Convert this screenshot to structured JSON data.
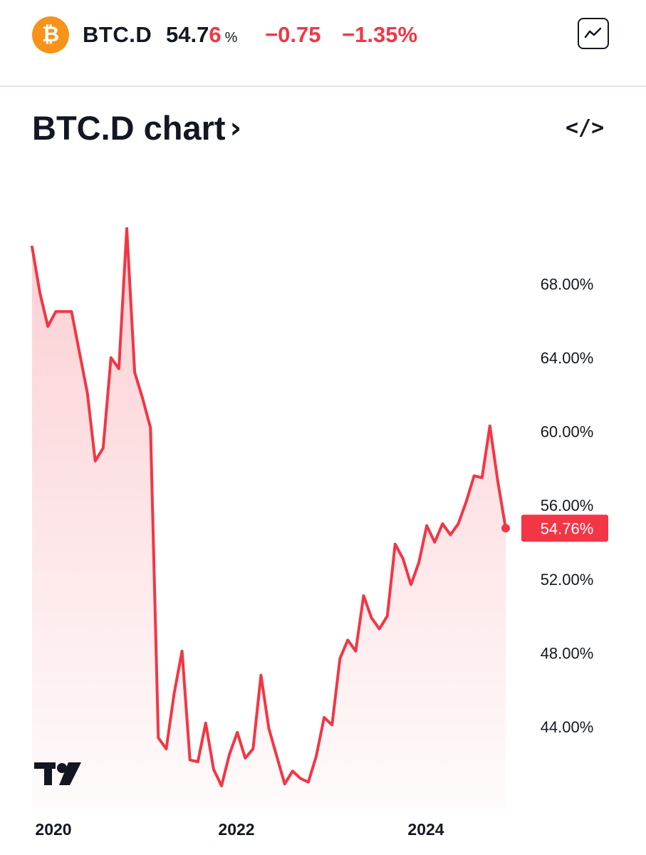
{
  "header": {
    "coin_glyph": "₿",
    "symbol": "BTC.D",
    "price_main": "54.7",
    "price_last": "6",
    "price_unit": "%",
    "change": "−0.75",
    "change_percent": "−1.35%",
    "chart_icon": "line-chart-icon"
  },
  "section": {
    "title": "BTC.D chart",
    "chevron": "›",
    "embed_label": "</>",
    "embed_icon": "code-icon"
  },
  "colors": {
    "line": "#f23645",
    "coin": "#f7931a",
    "text": "#131722"
  },
  "chart_data": {
    "type": "area",
    "title": "",
    "xlabel": "",
    "ylabel": "",
    "x_ticks": [
      "2020",
      "2022",
      "2024"
    ],
    "y_ticks": [
      "44.00%",
      "48.00%",
      "52.00%",
      "56.00%",
      "60.00%",
      "64.00%",
      "68.00%"
    ],
    "ylim": [
      40.5,
      71.5
    ],
    "grid": false,
    "last_value_label": "54.76%",
    "series": [
      {
        "values": [
          70.0,
          67.5,
          65.7,
          66.5,
          66.5,
          66.5,
          64.3,
          62.1,
          58.4,
          59.1,
          64.0,
          63.4,
          71.0,
          63.2,
          61.8,
          60.2,
          43.4,
          42.8,
          45.8,
          48.1,
          42.2,
          42.1,
          44.2,
          41.7,
          40.8,
          42.5,
          43.7,
          42.3,
          42.8,
          46.8,
          43.9,
          42.4,
          40.9,
          41.6,
          41.2,
          41.0,
          42.4,
          44.5,
          44.1,
          47.7,
          48.7,
          48.1,
          51.1,
          49.9,
          49.3,
          50.0,
          53.9,
          53.1,
          51.7,
          52.9,
          54.9,
          54.0,
          55.0,
          54.4,
          55.0,
          56.2,
          57.6,
          57.5,
          60.3,
          57.3,
          54.76
        ]
      }
    ]
  },
  "watermark_logo": "TV"
}
